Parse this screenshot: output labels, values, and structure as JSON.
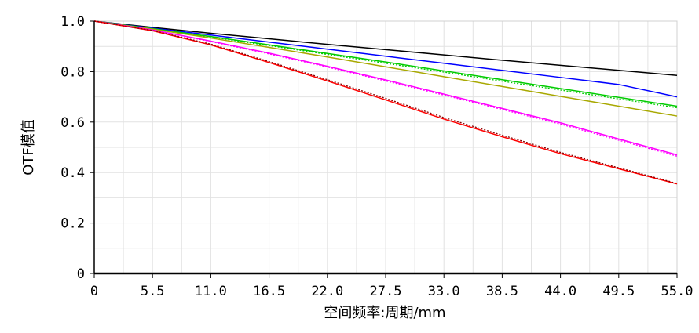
{
  "chart_data": {
    "type": "line",
    "title": "",
    "xlabel": "空间频率:周期/mm",
    "ylabel": "OTF模值",
    "xlim": [
      0,
      55
    ],
    "ylim": [
      0,
      1.0
    ],
    "x_ticks": [
      "0",
      "5.5",
      "11.0",
      "16.5",
      "22.0",
      "27.5",
      "33.0",
      "38.5",
      "44.0",
      "49.5",
      "55.0"
    ],
    "y_ticks": [
      "0",
      "0.2",
      "0.4",
      "0.6",
      "0.8",
      "1.0"
    ],
    "grid": true,
    "x": [
      0,
      5.5,
      11,
      16.5,
      22,
      27.5,
      33,
      38.5,
      44,
      49.5,
      55
    ],
    "series": [
      {
        "color": "#000000",
        "style": "solid",
        "values": [
          1.0,
          0.975,
          0.952,
          0.93,
          0.908,
          0.887,
          0.866,
          0.845,
          0.825,
          0.805,
          0.785
        ]
      },
      {
        "color": "#0000ff",
        "style": "solid",
        "values": [
          1.0,
          0.972,
          0.945,
          0.917,
          0.889,
          0.861,
          0.833,
          0.805,
          0.777,
          0.749,
          0.7
        ]
      },
      {
        "color": "#00cc00",
        "style": "solid",
        "values": [
          1.0,
          0.97,
          0.939,
          0.906,
          0.872,
          0.838,
          0.803,
          0.768,
          0.733,
          0.698,
          0.663
        ]
      },
      {
        "color": "#00cc00",
        "style": "dotted",
        "values": [
          1.0,
          0.969,
          0.937,
          0.903,
          0.868,
          0.833,
          0.798,
          0.762,
          0.727,
          0.692,
          0.657
        ]
      },
      {
        "color": "#a8a800",
        "style": "solid",
        "values": [
          1.0,
          0.968,
          0.933,
          0.896,
          0.858,
          0.819,
          0.78,
          0.741,
          0.702,
          0.663,
          0.624
        ]
      },
      {
        "color": "#ff00ff",
        "style": "solid",
        "values": [
          1.0,
          0.965,
          0.921,
          0.873,
          0.821,
          0.767,
          0.711,
          0.654,
          0.597,
          0.533,
          0.47
        ]
      },
      {
        "color": "#ff00ff",
        "style": "dotted",
        "values": [
          1.0,
          0.964,
          0.919,
          0.87,
          0.818,
          0.763,
          0.707,
          0.65,
          0.592,
          0.528,
          0.465
        ]
      },
      {
        "color": "#ff0000",
        "style": "solid",
        "values": [
          1.0,
          0.962,
          0.906,
          0.836,
          0.763,
          0.688,
          0.612,
          0.542,
          0.475,
          0.415,
          0.355
        ]
      },
      {
        "color": "#880000",
        "style": "dotted",
        "values": [
          1.0,
          0.963,
          0.909,
          0.84,
          0.768,
          0.694,
          0.618,
          0.548,
          0.48,
          0.419,
          0.357
        ]
      }
    ]
  }
}
